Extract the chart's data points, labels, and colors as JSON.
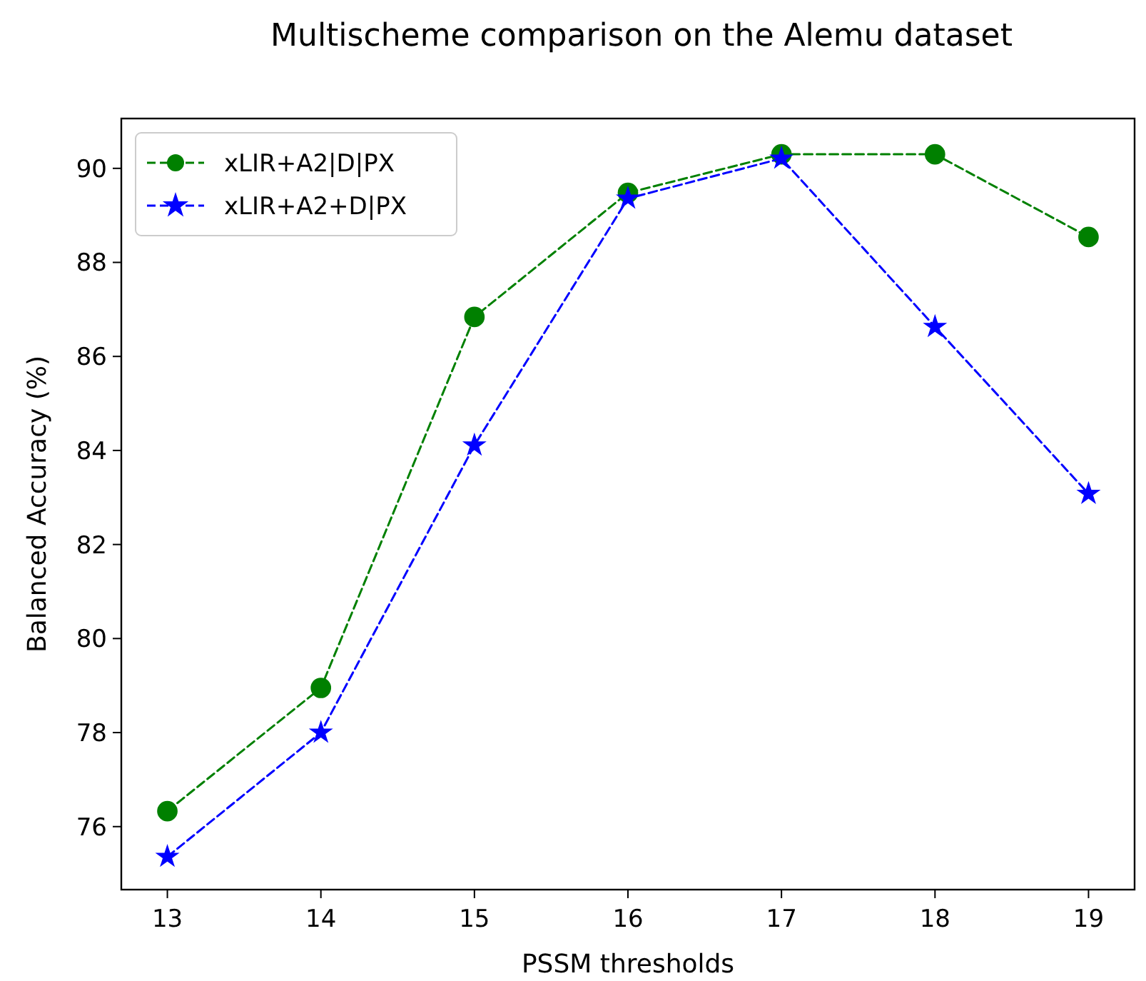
{
  "chart_data": {
    "type": "line",
    "title": "Multischeme comparison on the Alemu dataset",
    "xlabel": "PSSM thresholds",
    "ylabel": "Balanced Accuracy (%)",
    "x": [
      13,
      14,
      15,
      16,
      17,
      18,
      19
    ],
    "series": [
      {
        "name": "xLIR+A2|D|PX",
        "color": "#008000",
        "marker": "circle",
        "line_style": "dashed",
        "values": [
          76.33,
          78.95,
          86.84,
          89.48,
          90.3,
          90.3,
          88.54
        ]
      },
      {
        "name": "xLIR+A2+D|PX",
        "color": "#0000ff",
        "marker": "star",
        "line_style": "dashed",
        "values": [
          75.36,
          78.0,
          84.11,
          89.36,
          90.21,
          86.63,
          83.08
        ]
      }
    ],
    "xlim": [
      12.7,
      19.3
    ],
    "xticks": [
      13,
      14,
      15,
      16,
      17,
      18,
      19
    ],
    "ylim": [
      74.66,
      91.06
    ],
    "yticks": [
      76,
      78,
      80,
      82,
      84,
      86,
      88,
      90
    ],
    "grid": false,
    "legend": "top left"
  }
}
